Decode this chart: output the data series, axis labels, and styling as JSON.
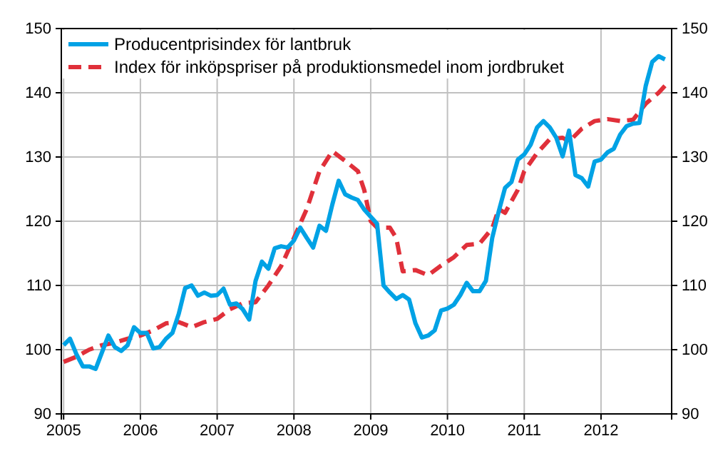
{
  "chart_data": {
    "type": "line",
    "legend": "top left",
    "grid": true,
    "xlim": [
      2004.97,
      2012.92
    ],
    "xticks": [
      2005,
      2006,
      2007,
      2008,
      2009,
      2010,
      2011,
      2012
    ],
    "ylim": [
      90,
      150
    ],
    "yticks": [
      90,
      100,
      110,
      120,
      130,
      140,
      150
    ],
    "y2lim": [
      90,
      150
    ],
    "y2ticks": [
      90,
      100,
      110,
      120,
      130,
      140,
      150
    ],
    "series": [
      {
        "name": "Producentprisindex för lantbruk",
        "color": "#00a2e5",
        "line_style": "solid",
        "x": [
          2005,
          2005.083,
          2005.167,
          2005.25,
          2005.333,
          2005.417,
          2005.5,
          2005.583,
          2005.667,
          2005.75,
          2005.833,
          2005.917,
          2006,
          2006.083,
          2006.167,
          2006.25,
          2006.333,
          2006.417,
          2006.5,
          2006.583,
          2006.667,
          2006.75,
          2006.833,
          2006.917,
          2007,
          2007.083,
          2007.167,
          2007.25,
          2007.333,
          2007.417,
          2007.5,
          2007.583,
          2007.667,
          2007.75,
          2007.833,
          2007.917,
          2008,
          2008.083,
          2008.167,
          2008.25,
          2008.333,
          2008.417,
          2008.5,
          2008.583,
          2008.667,
          2008.75,
          2008.833,
          2008.917,
          2009,
          2009.083,
          2009.167,
          2009.25,
          2009.333,
          2009.417,
          2009.5,
          2009.583,
          2009.667,
          2009.75,
          2009.833,
          2009.917,
          2010,
          2010.083,
          2010.167,
          2010.25,
          2010.333,
          2010.417,
          2010.5,
          2010.583,
          2010.667,
          2010.75,
          2010.833,
          2010.917,
          2011,
          2011.083,
          2011.167,
          2011.25,
          2011.333,
          2011.417,
          2011.5,
          2011.583,
          2011.667,
          2011.75,
          2011.833,
          2011.917,
          2012,
          2012.083,
          2012.167,
          2012.25,
          2012.333,
          2012.417,
          2012.5,
          2012.583,
          2012.667,
          2012.75,
          2012.833
        ],
        "values": [
          100.7,
          101.7,
          99.3,
          97.4,
          97.4,
          97,
          99.6,
          102.2,
          100.4,
          99.8,
          100.7,
          103.5,
          102.6,
          102.6,
          100.2,
          100.4,
          101.7,
          102.6,
          105.6,
          109.6,
          110,
          108.4,
          108.9,
          108.4,
          108.5,
          109.5,
          107,
          107.2,
          106.3,
          104.7,
          110.7,
          113.7,
          112.6,
          115.8,
          116.1,
          115.9,
          117,
          119,
          117.4,
          115.9,
          119.3,
          118.5,
          122.6,
          126.3,
          124.2,
          123.7,
          123.3,
          121.8,
          120.7,
          119.6,
          110,
          108.9,
          107.9,
          108.5,
          107.8,
          104.1,
          101.9,
          102.2,
          103,
          106.1,
          106.4,
          107,
          108.5,
          110.4,
          109.1,
          109.1,
          110.7,
          117.4,
          121.5,
          125.2,
          126.1,
          129.6,
          130.4,
          131.9,
          134.6,
          135.6,
          134.6,
          133,
          130.1,
          134.1,
          127.2,
          126.7,
          125.4,
          129.3,
          129.6,
          130.7,
          131.3,
          133.5,
          134.8,
          135.2,
          135.3,
          141.1,
          144.8,
          145.7,
          145.2
        ]
      },
      {
        "name": "Index för inköpspriser på produktionsmedel inom jordbruket",
        "color": "#e0303a",
        "line_style": "dashed",
        "x": [
          2005,
          2005.167,
          2005.333,
          2005.5,
          2005.667,
          2005.833,
          2006,
          2006.167,
          2006.333,
          2006.5,
          2006.667,
          2006.833,
          2007,
          2007.167,
          2007.333,
          2007.5,
          2007.667,
          2007.833,
          2008,
          2008.167,
          2008.333,
          2008.5,
          2008.667,
          2008.833,
          2008.917,
          2009,
          2009.083,
          2009.25,
          2009.333,
          2009.417,
          2009.583,
          2009.75,
          2009.917,
          2010.083,
          2010.25,
          2010.417,
          2010.583,
          2010.667,
          2010.75,
          2010.917,
          2011,
          2011.167,
          2011.333,
          2011.5,
          2011.583,
          2011.75,
          2011.917,
          2012.083,
          2012.25,
          2012.417,
          2012.583,
          2012.75,
          2012.833
        ],
        "values": [
          98.1,
          98.9,
          100,
          100.7,
          101.1,
          101.7,
          102.2,
          103,
          104.1,
          104.3,
          103.5,
          104.3,
          104.8,
          106.3,
          107.2,
          107.4,
          110,
          113,
          117.4,
          121.9,
          127.8,
          130.9,
          129.4,
          127.8,
          124.8,
          120,
          119,
          119,
          117.4,
          112.2,
          112.4,
          111.6,
          113.1,
          114.4,
          116.3,
          116.5,
          118.9,
          121.9,
          121.3,
          124.9,
          127.8,
          130.6,
          132.8,
          133,
          132.4,
          134.4,
          135.6,
          135.9,
          135.6,
          135.8,
          138.3,
          140,
          141.1
        ]
      }
    ]
  }
}
